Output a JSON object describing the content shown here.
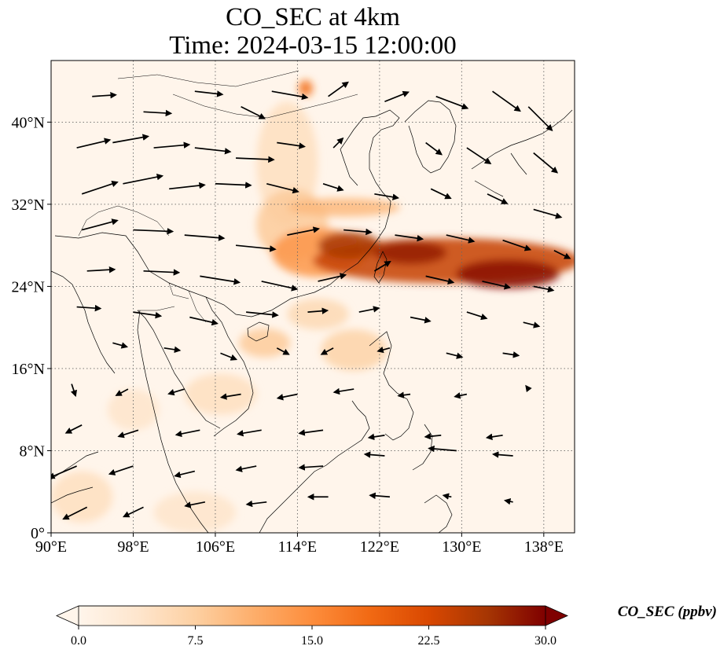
{
  "title": {
    "line1": "CO_SEC at 4km",
    "line2": "Time: 2024-03-15 12:00:00"
  },
  "map": {
    "lon_range": [
      90,
      141
    ],
    "lat_range": [
      0,
      46
    ],
    "lon_ticks": [
      {
        "value": 90,
        "label": "90°E"
      },
      {
        "value": 98,
        "label": "98°E"
      },
      {
        "value": 106,
        "label": "106°E"
      },
      {
        "value": 114,
        "label": "114°E"
      },
      {
        "value": 122,
        "label": "122°E"
      },
      {
        "value": 130,
        "label": "130°E"
      },
      {
        "value": 138,
        "label": "138°E"
      }
    ],
    "lat_ticks": [
      {
        "value": 0,
        "label": "0°"
      },
      {
        "value": 8,
        "label": "8°N"
      },
      {
        "value": 16,
        "label": "16°N"
      },
      {
        "value": 24,
        "label": "24°N"
      },
      {
        "value": 32,
        "label": "32°N"
      },
      {
        "value": 40,
        "label": "40°N"
      }
    ],
    "gridlines": "dotted",
    "background_color": "#fff5eb",
    "coastline_color": "#000000",
    "concentration_plumes": [
      {
        "lon": 128.5,
        "lat": 26.5,
        "rlon": 13.0,
        "rlat": 2.2,
        "value": 24
      },
      {
        "lon": 134.5,
        "lat": 25.2,
        "rlon": 5.0,
        "rlat": 1.4,
        "value": 29
      },
      {
        "lon": 125.0,
        "lat": 27.3,
        "rlon": 3.5,
        "rlat": 1.1,
        "value": 28
      },
      {
        "lon": 119.0,
        "lat": 28.0,
        "rlon": 3.0,
        "rlat": 1.3,
        "value": 26
      },
      {
        "lon": 116.0,
        "lat": 27.3,
        "rlon": 4.5,
        "rlat": 2.4,
        "value": 14
      },
      {
        "lon": 113.5,
        "lat": 30.0,
        "rlon": 3.5,
        "rlat": 3.5,
        "value": 8
      },
      {
        "lon": 118.5,
        "lat": 31.7,
        "rlon": 5.5,
        "rlat": 0.9,
        "value": 10
      },
      {
        "lon": 114.8,
        "lat": 43.3,
        "rlon": 0.7,
        "rlat": 0.8,
        "value": 18
      },
      {
        "lon": 113.0,
        "lat": 36.0,
        "rlon": 3.0,
        "rlat": 6.0,
        "value": 5
      },
      {
        "lon": 110.8,
        "lat": 18.5,
        "rlon": 2.5,
        "rlat": 1.4,
        "value": 8
      },
      {
        "lon": 119.5,
        "lat": 17.8,
        "rlon": 3.2,
        "rlat": 2.0,
        "value": 7
      },
      {
        "lon": 116.0,
        "lat": 21.3,
        "rlon": 3.0,
        "rlat": 1.5,
        "value": 6
      },
      {
        "lon": 106.5,
        "lat": 13.5,
        "rlon": 3.5,
        "rlat": 2.0,
        "value": 5
      },
      {
        "lon": 98.0,
        "lat": 12.0,
        "rlon": 2.5,
        "rlat": 2.0,
        "value": 4
      },
      {
        "lon": 93.0,
        "lat": 3.5,
        "rlon": 3.0,
        "rlat": 2.5,
        "value": 5
      },
      {
        "lon": 104.0,
        "lat": 2.0,
        "rlon": 4.0,
        "rlat": 2.0,
        "value": 4
      }
    ],
    "wind_vectors": [
      {
        "lon": 92.5,
        "lat": 37.5,
        "u": 4.2,
        "v": 1.0
      },
      {
        "lon": 96.0,
        "lat": 38.0,
        "u": 4.5,
        "v": 0.8
      },
      {
        "lon": 100.0,
        "lat": 37.5,
        "u": 4.5,
        "v": 0.4
      },
      {
        "lon": 104.0,
        "lat": 37.5,
        "u": 4.5,
        "v": -0.5
      },
      {
        "lon": 108.0,
        "lat": 36.5,
        "u": 4.8,
        "v": -0.2
      },
      {
        "lon": 94.0,
        "lat": 42.5,
        "u": 3.0,
        "v": 0.2
      },
      {
        "lon": 99.0,
        "lat": 41.0,
        "u": 3.5,
        "v": -0.2
      },
      {
        "lon": 104.0,
        "lat": 43.0,
        "u": 3.5,
        "v": -0.4
      },
      {
        "lon": 108.5,
        "lat": 41.5,
        "u": 3.0,
        "v": -1.5
      },
      {
        "lon": 111.5,
        "lat": 43.0,
        "u": 4.5,
        "v": -0.8
      },
      {
        "lon": 117.0,
        "lat": 42.5,
        "u": 2.5,
        "v": 1.8
      },
      {
        "lon": 122.5,
        "lat": 42.0,
        "u": 3.0,
        "v": 1.2
      },
      {
        "lon": 127.5,
        "lat": 42.5,
        "u": 4.0,
        "v": -1.5
      },
      {
        "lon": 133.0,
        "lat": 43.0,
        "u": 3.5,
        "v": -2.5
      },
      {
        "lon": 136.5,
        "lat": 41.5,
        "u": 3.0,
        "v": -3.0
      },
      {
        "lon": 137.0,
        "lat": 37.0,
        "u": 3.0,
        "v": -2.5
      },
      {
        "lon": 130.5,
        "lat": 37.5,
        "u": 3.0,
        "v": -2.0
      },
      {
        "lon": 126.5,
        "lat": 38.0,
        "u": 2.0,
        "v": -1.5
      },
      {
        "lon": 117.5,
        "lat": 37.5,
        "u": 1.2,
        "v": 1.2
      },
      {
        "lon": 112.0,
        "lat": 38.0,
        "u": 3.5,
        "v": -0.5
      },
      {
        "lon": 93.0,
        "lat": 33.0,
        "u": 4.5,
        "v": 1.5
      },
      {
        "lon": 97.0,
        "lat": 34.0,
        "u": 5.0,
        "v": 1.0
      },
      {
        "lon": 101.5,
        "lat": 33.5,
        "u": 4.5,
        "v": 0.5
      },
      {
        "lon": 106.0,
        "lat": 34.0,
        "u": 4.5,
        "v": -0.2
      },
      {
        "lon": 111.0,
        "lat": 34.0,
        "u": 4.0,
        "v": -1.0
      },
      {
        "lon": 116.5,
        "lat": 34.0,
        "u": 2.5,
        "v": -0.8
      },
      {
        "lon": 121.5,
        "lat": 33.0,
        "u": 3.0,
        "v": -0.5
      },
      {
        "lon": 127.0,
        "lat": 33.5,
        "u": 2.5,
        "v": -1.2
      },
      {
        "lon": 132.5,
        "lat": 33.0,
        "u": 2.5,
        "v": -1.2
      },
      {
        "lon": 137.0,
        "lat": 31.5,
        "u": 3.5,
        "v": -1.0
      },
      {
        "lon": 93.0,
        "lat": 29.5,
        "u": 4.5,
        "v": 1.2
      },
      {
        "lon": 98.0,
        "lat": 29.5,
        "u": 5.0,
        "v": -0.2
      },
      {
        "lon": 103.0,
        "lat": 29.0,
        "u": 5.0,
        "v": -0.4
      },
      {
        "lon": 108.0,
        "lat": 28.0,
        "u": 5.0,
        "v": -0.5
      },
      {
        "lon": 113.0,
        "lat": 29.0,
        "u": 4.0,
        "v": 0.8
      },
      {
        "lon": 118.5,
        "lat": 29.5,
        "u": 3.5,
        "v": -0.3
      },
      {
        "lon": 123.5,
        "lat": 29.0,
        "u": 3.5,
        "v": -0.5
      },
      {
        "lon": 128.5,
        "lat": 29.0,
        "u": 3.5,
        "v": -0.8
      },
      {
        "lon": 134.0,
        "lat": 28.5,
        "u": 3.5,
        "v": -1.2
      },
      {
        "lon": 139.0,
        "lat": 27.5,
        "u": 2.0,
        "v": -1.0
      },
      {
        "lon": 93.5,
        "lat": 25.5,
        "u": 3.5,
        "v": 0.2
      },
      {
        "lon": 99.0,
        "lat": 25.5,
        "u": 4.5,
        "v": -0.2
      },
      {
        "lon": 104.5,
        "lat": 25.0,
        "u": 5.0,
        "v": -0.8
      },
      {
        "lon": 110.5,
        "lat": 24.5,
        "u": 4.5,
        "v": -1.0
      },
      {
        "lon": 116.0,
        "lat": 24.5,
        "u": 3.5,
        "v": 0.8
      },
      {
        "lon": 121.5,
        "lat": 25.5,
        "u": 2.0,
        "v": 1.2
      },
      {
        "lon": 126.5,
        "lat": 25.0,
        "u": 3.5,
        "v": -0.8
      },
      {
        "lon": 132.0,
        "lat": 24.5,
        "u": 3.5,
        "v": -0.8
      },
      {
        "lon": 137.0,
        "lat": 24.0,
        "u": 2.5,
        "v": -0.5
      },
      {
        "lon": 92.5,
        "lat": 22.0,
        "u": 3.0,
        "v": -0.2
      },
      {
        "lon": 98.0,
        "lat": 21.5,
        "u": 3.5,
        "v": -0.5
      },
      {
        "lon": 103.5,
        "lat": 21.0,
        "u": 3.5,
        "v": -0.8
      },
      {
        "lon": 109.0,
        "lat": 21.5,
        "u": 4.0,
        "v": -0.4
      },
      {
        "lon": 115.0,
        "lat": 21.5,
        "u": 2.5,
        "v": 0.2
      },
      {
        "lon": 120.0,
        "lat": 21.5,
        "u": 2.5,
        "v": 0.5
      },
      {
        "lon": 125.0,
        "lat": 21.0,
        "u": 2.5,
        "v": -0.5
      },
      {
        "lon": 130.5,
        "lat": 21.5,
        "u": 2.5,
        "v": -0.8
      },
      {
        "lon": 136.0,
        "lat": 20.5,
        "u": 2.0,
        "v": -0.5
      },
      {
        "lon": 96.0,
        "lat": 18.5,
        "u": 1.8,
        "v": -0.5
      },
      {
        "lon": 101.0,
        "lat": 18.0,
        "u": 2.0,
        "v": -0.3
      },
      {
        "lon": 106.5,
        "lat": 17.5,
        "u": 2.0,
        "v": -0.8
      },
      {
        "lon": 112.0,
        "lat": 18.0,
        "u": 1.5,
        "v": -0.8
      },
      {
        "lon": 117.5,
        "lat": 18.0,
        "u": -1.5,
        "v": -0.8
      },
      {
        "lon": 123.0,
        "lat": 18.0,
        "u": -1.5,
        "v": -0.4
      },
      {
        "lon": 128.5,
        "lat": 17.5,
        "u": 2.0,
        "v": -0.5
      },
      {
        "lon": 134.0,
        "lat": 17.5,
        "u": 2.0,
        "v": -0.3
      },
      {
        "lon": 92.0,
        "lat": 14.5,
        "u": 0.5,
        "v": -1.5
      },
      {
        "lon": 97.5,
        "lat": 14.0,
        "u": -1.5,
        "v": -0.8
      },
      {
        "lon": 103.0,
        "lat": 14.0,
        "u": -2.0,
        "v": -0.6
      },
      {
        "lon": 108.5,
        "lat": 13.5,
        "u": -2.5,
        "v": -0.4
      },
      {
        "lon": 114.0,
        "lat": 13.5,
        "u": -2.5,
        "v": -0.5
      },
      {
        "lon": 119.5,
        "lat": 14.0,
        "u": -2.5,
        "v": -0.4
      },
      {
        "lon": 125.0,
        "lat": 13.5,
        "u": -1.5,
        "v": -0.2
      },
      {
        "lon": 130.5,
        "lat": 13.5,
        "u": -1.5,
        "v": -0.3
      },
      {
        "lon": 136.5,
        "lat": 14.0,
        "u": -0.3,
        "v": 0.4
      },
      {
        "lon": 93.0,
        "lat": 10.5,
        "u": -2.0,
        "v": -1.0
      },
      {
        "lon": 98.5,
        "lat": 10.0,
        "u": -2.5,
        "v": -0.8
      },
      {
        "lon": 104.5,
        "lat": 10.0,
        "u": -3.0,
        "v": -0.6
      },
      {
        "lon": 110.5,
        "lat": 10.0,
        "u": -3.0,
        "v": -0.5
      },
      {
        "lon": 116.5,
        "lat": 10.0,
        "u": -3.0,
        "v": -0.4
      },
      {
        "lon": 122.5,
        "lat": 9.5,
        "u": -2.0,
        "v": -0.3
      },
      {
        "lon": 128.0,
        "lat": 9.5,
        "u": -2.0,
        "v": -0.2
      },
      {
        "lon": 134.0,
        "lat": 9.5,
        "u": -2.0,
        "v": -0.3
      },
      {
        "lon": 92.5,
        "lat": 6.5,
        "u": -3.5,
        "v": -1.5
      },
      {
        "lon": 98.0,
        "lat": 6.5,
        "u": -3.0,
        "v": -1.0
      },
      {
        "lon": 104.0,
        "lat": 6.0,
        "u": -2.5,
        "v": -0.6
      },
      {
        "lon": 110.0,
        "lat": 6.5,
        "u": -2.5,
        "v": -0.5
      },
      {
        "lon": 116.5,
        "lat": 6.5,
        "u": -3.0,
        "v": -0.2
      },
      {
        "lon": 122.5,
        "lat": 7.5,
        "u": -2.5,
        "v": 0.2
      },
      {
        "lon": 129.5,
        "lat": 8.0,
        "u": -3.5,
        "v": 0.3
      },
      {
        "lon": 135.0,
        "lat": 7.5,
        "u": -2.5,
        "v": 0.2
      },
      {
        "lon": 93.5,
        "lat": 2.5,
        "u": -3.0,
        "v": -1.5
      },
      {
        "lon": 99.0,
        "lat": 2.5,
        "u": -2.5,
        "v": -1.2
      },
      {
        "lon": 105.0,
        "lat": 3.0,
        "u": -2.5,
        "v": -0.5
      },
      {
        "lon": 111.0,
        "lat": 3.0,
        "u": -2.5,
        "v": -0.3
      },
      {
        "lon": 117.0,
        "lat": 3.5,
        "u": -2.5,
        "v": 0.0
      },
      {
        "lon": 123.0,
        "lat": 3.5,
        "u": -2.5,
        "v": 0.2
      },
      {
        "lon": 129.0,
        "lat": 3.5,
        "u": -1.0,
        "v": 0.2
      },
      {
        "lon": 135.0,
        "lat": 3.0,
        "u": -1.0,
        "v": 0.2
      }
    ]
  },
  "colorbar": {
    "label": "CO_SEC (ppbv)",
    "min": 0.0,
    "max": 30.0,
    "extend": "both",
    "ticks": [
      {
        "value": 0.0,
        "label": "0.0"
      },
      {
        "value": 7.5,
        "label": "7.5"
      },
      {
        "value": 15.0,
        "label": "15.0"
      },
      {
        "value": 22.5,
        "label": "22.5"
      },
      {
        "value": 30.0,
        "label": "30.0"
      }
    ],
    "colors": [
      "#fff5eb",
      "#fee6ce",
      "#fdd0a2",
      "#fdae6b",
      "#fd8d3c",
      "#f16913",
      "#d94801",
      "#a63603",
      "#7f0000"
    ]
  }
}
